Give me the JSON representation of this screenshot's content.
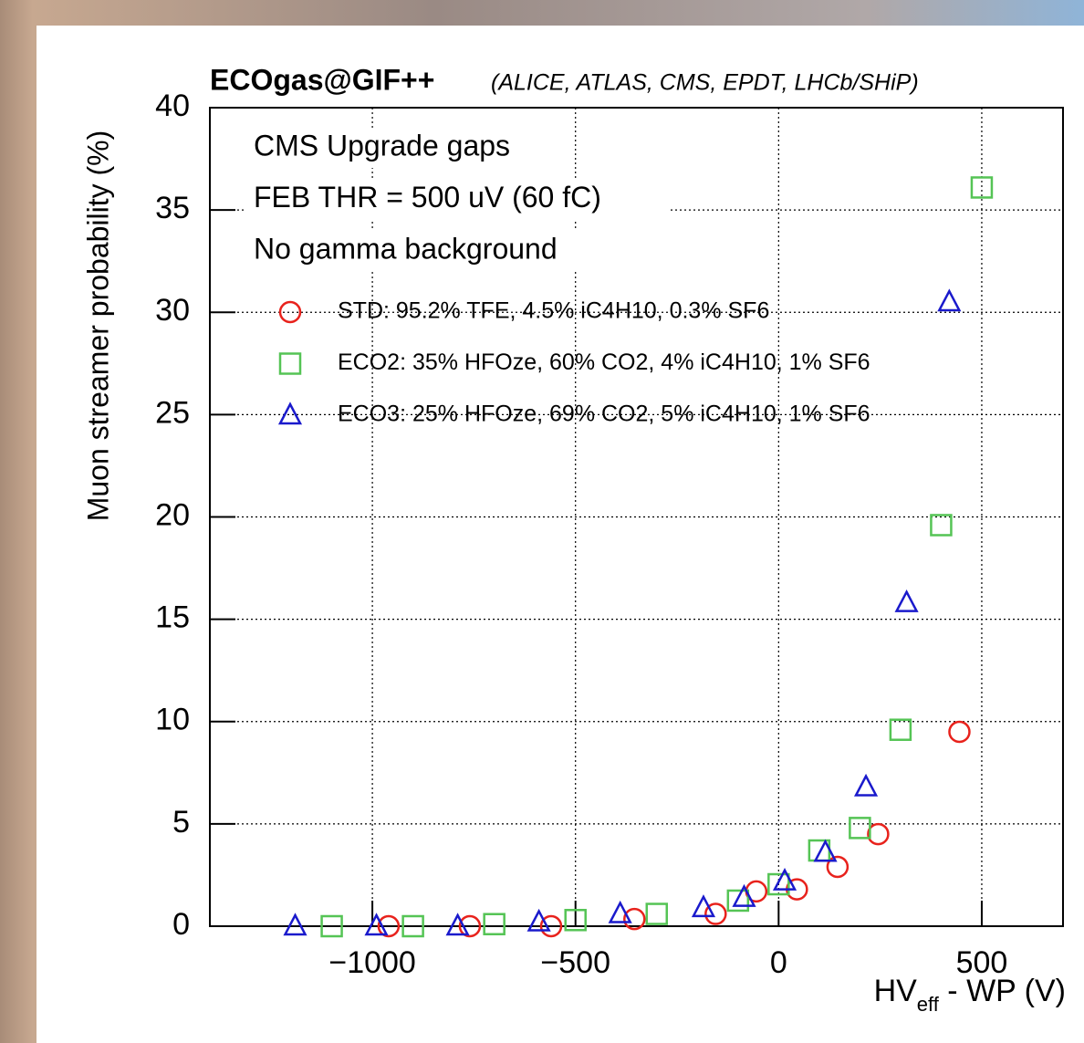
{
  "chart_data": {
    "type": "scatter",
    "title": "ECOgas@GIF++",
    "subtitle": "(ALICE, ATLAS, CMS, EPDT, LHCb/SHiP)",
    "annotations": [
      "CMS Upgrade gaps",
      "FEB THR = 500 uV (60 fC)",
      "No gamma background"
    ],
    "x_label": [
      "HV",
      "eff",
      " - WP (V)"
    ],
    "y_label": "Muon streamer probability (%)",
    "xlim": [
      -1400,
      700
    ],
    "ylim": [
      0,
      40
    ],
    "xticks": [
      {
        "value": -1000,
        "label": "−1000"
      },
      {
        "value": -500,
        "label": "−500"
      },
      0,
      500
    ],
    "yticks": [
      0,
      5,
      10,
      15,
      20,
      25,
      30,
      35,
      40
    ],
    "grid": true,
    "series": [
      {
        "name": "STD: 95.2% TFE, 4.5% iC4H10, 0.3% SF6",
        "color": "#e8221c",
        "marker": "circle",
        "x": [
          -960,
          -760,
          -560,
          -355,
          -155,
          -55,
          45,
          145,
          245,
          445
        ],
        "values": [
          0,
          0,
          0,
          0.35,
          0.6,
          1.7,
          1.8,
          2.9,
          4.5,
          9.5
        ]
      },
      {
        "name": "ECO2: 35% HFOze, 60% CO2, 4% iC4H10, 1% SF6",
        "color": "#55c455",
        "marker": "square",
        "x": [
          -1100,
          -900,
          -700,
          -500,
          -300,
          -100,
          0,
          100,
          200,
          300,
          400,
          500
        ],
        "values": [
          0,
          0,
          0.1,
          0.3,
          0.6,
          1.25,
          2.05,
          3.7,
          4.8,
          9.6,
          19.6,
          36.1
        ]
      },
      {
        "name": "ECO3: 25% HFOze, 69% CO2, 5% iC4H10, 1% SF6",
        "color": "#1a1acc",
        "marker": "triangle",
        "x": [
          -1190,
          -990,
          -790,
          -590,
          -390,
          -185,
          -85,
          15,
          115,
          215,
          315,
          420
        ],
        "values": [
          0,
          0,
          0,
          0.2,
          0.6,
          0.9,
          1.4,
          2.2,
          3.6,
          6.8,
          15.8,
          30.5
        ]
      }
    ]
  }
}
